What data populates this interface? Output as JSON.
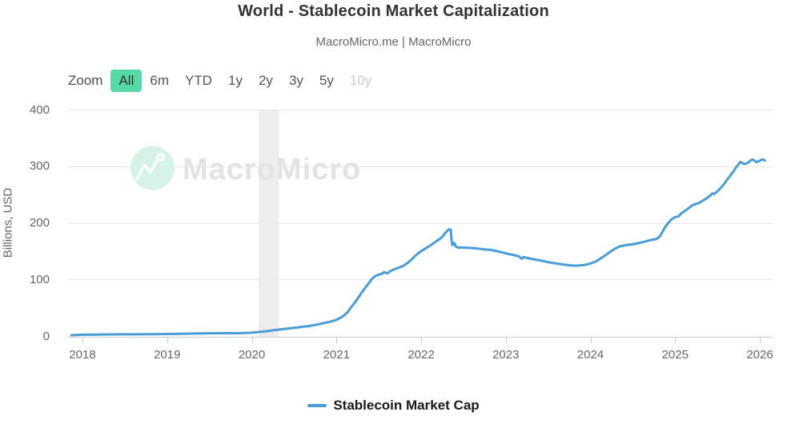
{
  "header": {
    "title": "World - Stablecoin Market Capitalization",
    "subtitle": "MacroMicro.me | MacroMicro"
  },
  "toolbar": {
    "zoom_label": "Zoom",
    "ranges": [
      {
        "label": "All",
        "state": "active"
      },
      {
        "label": "6m",
        "state": "normal"
      },
      {
        "label": "YTD",
        "state": "normal"
      },
      {
        "label": "1y",
        "state": "normal"
      },
      {
        "label": "2y",
        "state": "normal"
      },
      {
        "label": "3y",
        "state": "normal"
      },
      {
        "label": "5y",
        "state": "normal"
      },
      {
        "label": "10y",
        "state": "disabled"
      }
    ]
  },
  "watermark": {
    "text": "MacroMicro",
    "icon": "macromicro-logo-icon"
  },
  "colors": {
    "line": "#4a9cd4",
    "active_range_bg": "#57d9a6",
    "plot_band": "#ededed",
    "grid": "#e7e7e7",
    "axis_line": "#c9ced4",
    "tick": "#cccccc",
    "watermark_circle": "#d5f3e7",
    "watermark_text": "#e3e3e3"
  },
  "legend": {
    "items": [
      {
        "label": "Stablecoin Market Cap",
        "color": "#4a9cd4"
      }
    ]
  },
  "chart_data": {
    "type": "line",
    "title": "World - Stablecoin Market Capitalization",
    "subtitle": "MacroMicro.me | MacroMicro",
    "xlabel": "",
    "ylabel": "Billions, USD",
    "ylim": [
      0,
      400
    ],
    "x_range": [
      2017.87,
      2026.07
    ],
    "y_axis": {
      "ticks": [
        0,
        100,
        200,
        300,
        400
      ],
      "label": "Billions, USD"
    },
    "x_axis": {
      "ticks": [
        2018,
        2019,
        2020,
        2021,
        2022,
        2023,
        2024,
        2025,
        2026
      ]
    },
    "grid": true,
    "legend_position": "bottom",
    "plot_band": {
      "from": 2020.08,
      "to": 2020.32,
      "note": "recession-band"
    },
    "series": [
      {
        "name": "Stablecoin Market Cap",
        "color": "#4a9cd4",
        "points": [
          [
            2017.87,
            1.4
          ],
          [
            2018.0,
            2.2
          ],
          [
            2018.17,
            2.6
          ],
          [
            2018.33,
            2.8
          ],
          [
            2018.5,
            3.0
          ],
          [
            2018.67,
            2.9
          ],
          [
            2018.83,
            3.2
          ],
          [
            2019.0,
            3.6
          ],
          [
            2019.17,
            4.0
          ],
          [
            2019.33,
            4.4
          ],
          [
            2019.5,
            4.8
          ],
          [
            2019.67,
            4.9
          ],
          [
            2019.83,
            5.0
          ],
          [
            2020.0,
            5.8
          ],
          [
            2020.08,
            7.0
          ],
          [
            2020.17,
            8.3
          ],
          [
            2020.25,
            10.0
          ],
          [
            2020.33,
            11.5
          ],
          [
            2020.42,
            13.0
          ],
          [
            2020.5,
            14.5
          ],
          [
            2020.58,
            16.0
          ],
          [
            2020.67,
            17.5
          ],
          [
            2020.75,
            19.5
          ],
          [
            2020.83,
            22.0
          ],
          [
            2020.92,
            25.0
          ],
          [
            2021.0,
            28.5
          ],
          [
            2021.08,
            35.0
          ],
          [
            2021.13,
            42.0
          ],
          [
            2021.17,
            50.0
          ],
          [
            2021.21,
            58.0
          ],
          [
            2021.25,
            66.0
          ],
          [
            2021.29,
            75.0
          ],
          [
            2021.33,
            83.0
          ],
          [
            2021.38,
            93.0
          ],
          [
            2021.42,
            101.0
          ],
          [
            2021.46,
            106.0
          ],
          [
            2021.5,
            108.5
          ],
          [
            2021.54,
            110.0
          ],
          [
            2021.56,
            113.0
          ],
          [
            2021.58,
            112.0
          ],
          [
            2021.6,
            110.5
          ],
          [
            2021.63,
            114.0
          ],
          [
            2021.67,
            117.0
          ],
          [
            2021.71,
            119.5
          ],
          [
            2021.75,
            121.5
          ],
          [
            2021.79,
            124.0
          ],
          [
            2021.83,
            128.0
          ],
          [
            2021.88,
            134.0
          ],
          [
            2021.92,
            140.0
          ],
          [
            2021.96,
            145.5
          ],
          [
            2022.0,
            150.0
          ],
          [
            2022.04,
            153.5
          ],
          [
            2022.08,
            157.5
          ],
          [
            2022.13,
            162.0
          ],
          [
            2022.17,
            166.5
          ],
          [
            2022.21,
            170.5
          ],
          [
            2022.25,
            175.0
          ],
          [
            2022.28,
            181.0
          ],
          [
            2022.31,
            186.0
          ],
          [
            2022.33,
            188.5
          ],
          [
            2022.35,
            188.0
          ],
          [
            2022.36,
            168.0
          ],
          [
            2022.37,
            160.5
          ],
          [
            2022.39,
            164.5
          ],
          [
            2022.41,
            158.0
          ],
          [
            2022.44,
            156.0
          ],
          [
            2022.48,
            156.5
          ],
          [
            2022.52,
            156.0
          ],
          [
            2022.58,
            155.5
          ],
          [
            2022.63,
            155.0
          ],
          [
            2022.67,
            154.5
          ],
          [
            2022.75,
            153.0
          ],
          [
            2022.83,
            152.0
          ],
          [
            2022.92,
            149.0
          ],
          [
            2023.0,
            146.0
          ],
          [
            2023.08,
            143.5
          ],
          [
            2023.15,
            141.0
          ],
          [
            2023.19,
            136.5
          ],
          [
            2023.21,
            139.5
          ],
          [
            2023.25,
            138.0
          ],
          [
            2023.33,
            135.5
          ],
          [
            2023.42,
            133.0
          ],
          [
            2023.5,
            130.5
          ],
          [
            2023.58,
            128.5
          ],
          [
            2023.67,
            126.5
          ],
          [
            2023.75,
            125.0
          ],
          [
            2023.83,
            124.3
          ],
          [
            2023.92,
            125.3
          ],
          [
            2024.0,
            128.0
          ],
          [
            2024.07,
            132.0
          ],
          [
            2024.13,
            138.0
          ],
          [
            2024.19,
            144.0
          ],
          [
            2024.25,
            150.5
          ],
          [
            2024.3,
            155.0
          ],
          [
            2024.35,
            158.5
          ],
          [
            2024.42,
            160.5
          ],
          [
            2024.5,
            162.0
          ],
          [
            2024.58,
            164.5
          ],
          [
            2024.65,
            167.0
          ],
          [
            2024.71,
            169.5
          ],
          [
            2024.78,
            171.5
          ],
          [
            2024.82,
            176.0
          ],
          [
            2024.85,
            184.0
          ],
          [
            2024.88,
            192.0
          ],
          [
            2024.92,
            200.0
          ],
          [
            2024.96,
            206.5
          ],
          [
            2025.0,
            210.0
          ],
          [
            2025.04,
            211.5
          ],
          [
            2025.08,
            217.5
          ],
          [
            2025.13,
            222.5
          ],
          [
            2025.17,
            227.0
          ],
          [
            2025.21,
            231.5
          ],
          [
            2025.25,
            233.5
          ],
          [
            2025.29,
            235.5
          ],
          [
            2025.33,
            239.5
          ],
          [
            2025.38,
            244.0
          ],
          [
            2025.42,
            249.0
          ],
          [
            2025.44,
            252.0
          ],
          [
            2025.46,
            251.0
          ],
          [
            2025.5,
            255.5
          ],
          [
            2025.54,
            262.0
          ],
          [
            2025.58,
            269.0
          ],
          [
            2025.61,
            275.5
          ],
          [
            2025.65,
            283.0
          ],
          [
            2025.69,
            291.0
          ],
          [
            2025.72,
            298.0
          ],
          [
            2025.75,
            303.5
          ],
          [
            2025.77,
            307.5
          ],
          [
            2025.79,
            306.0
          ],
          [
            2025.81,
            304.5
          ],
          [
            2025.83,
            304.0
          ],
          [
            2025.86,
            306.0
          ],
          [
            2025.88,
            308.5
          ],
          [
            2025.9,
            311.0
          ],
          [
            2025.92,
            312.0
          ],
          [
            2025.94,
            309.0
          ],
          [
            2025.96,
            307.0
          ],
          [
            2025.98,
            308.5
          ],
          [
            2026.0,
            309.5
          ],
          [
            2026.02,
            311.5
          ],
          [
            2026.04,
            312.0
          ],
          [
            2026.06,
            310.0
          ]
        ]
      }
    ]
  }
}
